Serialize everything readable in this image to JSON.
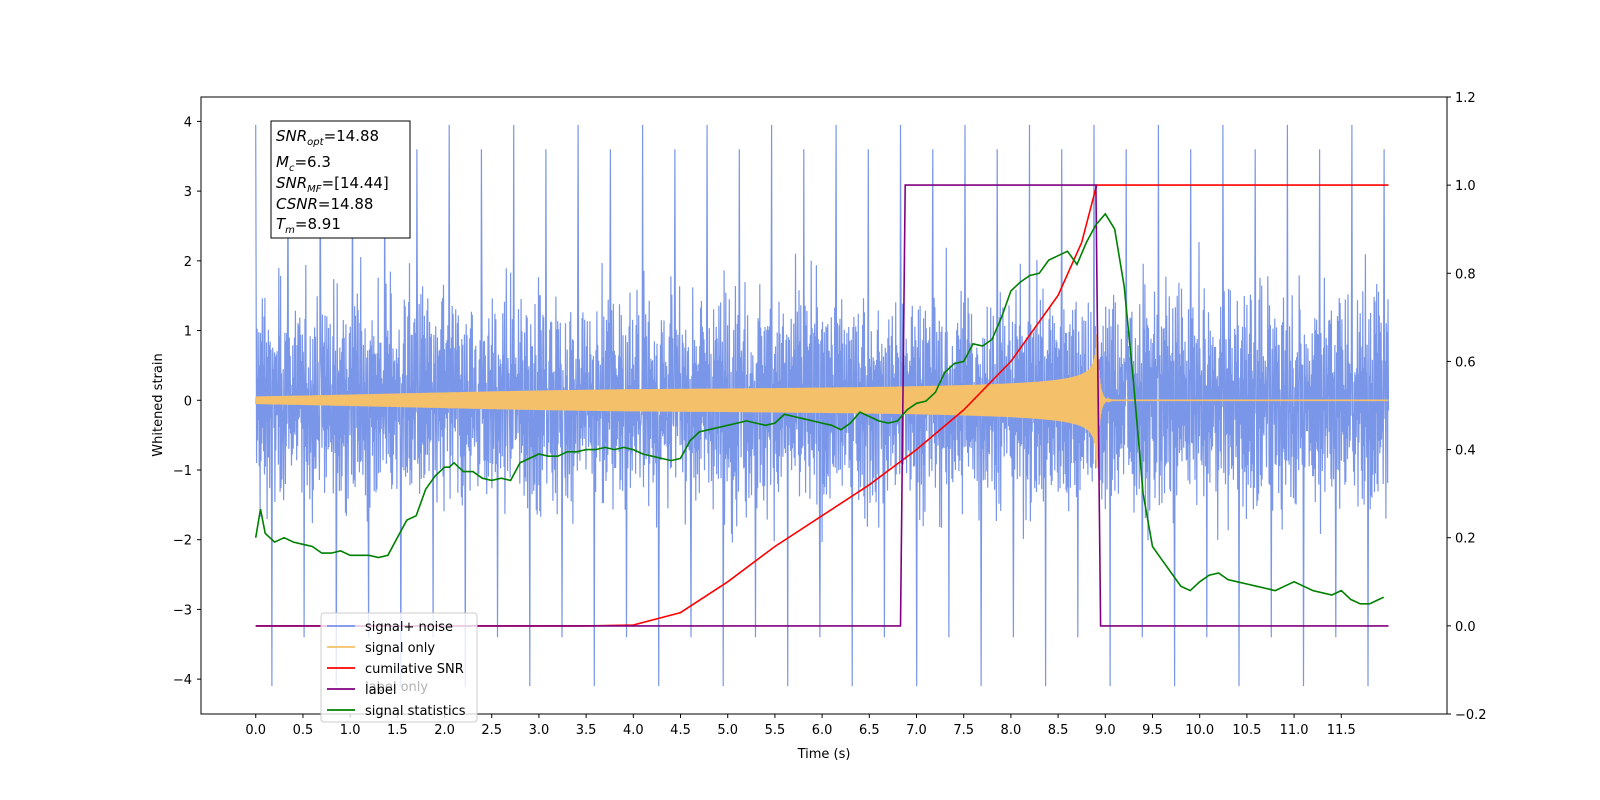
{
  "chart_data": {
    "type": "line",
    "xlabel": "Time (s)",
    "ylabel": "Whitened strain",
    "ylabel_right": "",
    "xlim": [
      -0.58,
      12.62
    ],
    "ylim": [
      -4.5,
      4.35
    ],
    "ylim_right": [
      -0.2,
      1.2
    ],
    "x_ticks": [
      "0.0",
      "0.5",
      "1.0",
      "1.5",
      "2.0",
      "2.5",
      "3.0",
      "3.5",
      "4.0",
      "4.5",
      "5.0",
      "5.5",
      "6.0",
      "6.5",
      "7.0",
      "7.5",
      "8.0",
      "8.5",
      "9.0",
      "9.5",
      "10.0",
      "10.5",
      "11.0",
      "11.5"
    ],
    "y_ticks": [
      "−4",
      "−3",
      "−2",
      "−1",
      "0",
      "1",
      "2",
      "3",
      "4"
    ],
    "y_right_ticks": [
      "−0.2",
      "0.0",
      "0.2",
      "0.4",
      "0.6",
      "0.8",
      "1.0",
      "1.2"
    ],
    "grid": false,
    "legend_position": "lower-left",
    "info_box": {
      "snr_opt": {
        "sym": "SNR",
        "sub": "opt",
        "rest": "=14.88"
      },
      "mc": {
        "sym": "M",
        "sub": "c",
        "rest": "=6.3"
      },
      "snr_mf": {
        "sym": "SNR",
        "sub": "MF",
        "rest": "=[14.44]"
      },
      "csnr": {
        "sym": "CSNR",
        "sub": "",
        "rest": "=14.88"
      },
      "tm": {
        "sym": "T",
        "sub": "m",
        "rest": "=8.91"
      }
    },
    "series": [
      {
        "name": "signal+ noise",
        "color": "#7a96e8",
        "axis": "left",
        "kind": "noise",
        "x_range": [
          0,
          12
        ],
        "noise_sigma": 0.85,
        "peak_values": [
          3.95,
          -4.1,
          3.6,
          -3.4
        ]
      },
      {
        "name": "signal only",
        "color": "#f5c06a",
        "axis": "left",
        "kind": "chirp",
        "x_range": [
          0,
          12
        ],
        "merger_time": 8.91,
        "peak_amplitude": 1.05
      },
      {
        "name": "cumilative SNR",
        "color": "#ff0000",
        "axis": "right",
        "x": [
          0,
          3.5,
          4.0,
          4.5,
          5.0,
          5.5,
          6.0,
          6.5,
          7.0,
          7.5,
          8.0,
          8.5,
          8.75,
          8.89,
          8.91,
          12.0
        ],
        "y": [
          0,
          0,
          0.002,
          0.03,
          0.1,
          0.18,
          0.25,
          0.32,
          0.4,
          0.49,
          0.6,
          0.75,
          0.87,
          0.985,
          1.0,
          1.0
        ]
      },
      {
        "name": "label",
        "color": "#800080",
        "axis": "right",
        "x": [
          0,
          6.83,
          6.88,
          8.87,
          8.9,
          8.95,
          12.0
        ],
        "y": [
          0,
          0,
          1.0,
          1.0,
          1.0,
          0,
          0
        ]
      },
      {
        "name": "signal statistics",
        "color": "#008000",
        "axis": "right",
        "x": [
          0,
          0.05,
          0.1,
          0.2,
          0.3,
          0.4,
          0.5,
          0.6,
          0.7,
          0.8,
          0.9,
          1.0,
          1.1,
          1.2,
          1.3,
          1.4,
          1.5,
          1.6,
          1.7,
          1.8,
          1.9,
          2.0,
          2.05,
          2.1,
          2.2,
          2.3,
          2.4,
          2.5,
          2.6,
          2.7,
          2.8,
          2.9,
          3.0,
          3.1,
          3.2,
          3.3,
          3.4,
          3.5,
          3.6,
          3.7,
          3.8,
          3.9,
          4.0,
          4.1,
          4.2,
          4.3,
          4.4,
          4.5,
          4.6,
          4.7,
          4.8,
          4.9,
          5.0,
          5.1,
          5.2,
          5.3,
          5.4,
          5.5,
          5.6,
          5.7,
          5.8,
          5.9,
          6.0,
          6.1,
          6.2,
          6.3,
          6.4,
          6.5,
          6.6,
          6.7,
          6.8,
          6.9,
          7.0,
          7.1,
          7.2,
          7.3,
          7.4,
          7.5,
          7.6,
          7.7,
          7.8,
          7.9,
          8.0,
          8.1,
          8.2,
          8.3,
          8.4,
          8.5,
          8.6,
          8.7,
          8.8,
          8.9,
          9.0,
          9.1,
          9.2,
          9.3,
          9.4,
          9.5,
          9.6,
          9.7,
          9.8,
          9.9,
          10.0,
          10.1,
          10.2,
          10.3,
          10.4,
          10.5,
          10.6,
          10.7,
          10.8,
          10.9,
          11.0,
          11.1,
          11.2,
          11.3,
          11.4,
          11.5,
          11.6,
          11.7,
          11.8,
          11.9,
          11.95
        ],
        "y": [
          0.2,
          0.265,
          0.21,
          0.19,
          0.2,
          0.19,
          0.185,
          0.18,
          0.165,
          0.165,
          0.17,
          0.16,
          0.16,
          0.16,
          0.155,
          0.16,
          0.2,
          0.24,
          0.25,
          0.31,
          0.34,
          0.36,
          0.36,
          0.37,
          0.35,
          0.35,
          0.335,
          0.33,
          0.335,
          0.33,
          0.37,
          0.38,
          0.39,
          0.385,
          0.385,
          0.395,
          0.395,
          0.4,
          0.4,
          0.405,
          0.4,
          0.405,
          0.4,
          0.39,
          0.385,
          0.38,
          0.375,
          0.38,
          0.42,
          0.44,
          0.445,
          0.45,
          0.455,
          0.46,
          0.465,
          0.46,
          0.455,
          0.46,
          0.48,
          0.475,
          0.47,
          0.465,
          0.46,
          0.455,
          0.445,
          0.46,
          0.485,
          0.475,
          0.465,
          0.46,
          0.465,
          0.49,
          0.505,
          0.51,
          0.53,
          0.575,
          0.595,
          0.6,
          0.64,
          0.635,
          0.65,
          0.7,
          0.76,
          0.78,
          0.795,
          0.8,
          0.83,
          0.84,
          0.85,
          0.82,
          0.87,
          0.91,
          0.935,
          0.9,
          0.77,
          0.55,
          0.3,
          0.18,
          0.15,
          0.12,
          0.09,
          0.08,
          0.1,
          0.115,
          0.12,
          0.105,
          0.1,
          0.095,
          0.09,
          0.085,
          0.08,
          0.09,
          0.1,
          0.09,
          0.08,
          0.075,
          0.07,
          0.08,
          0.06,
          0.05,
          0.05,
          0.06,
          0.065
        ]
      }
    ]
  },
  "legend_labels": [
    "signal+ noise",
    "signal only",
    "cumilative SNR",
    "label",
    "signal statistics"
  ],
  "legend_ghost": "label only"
}
